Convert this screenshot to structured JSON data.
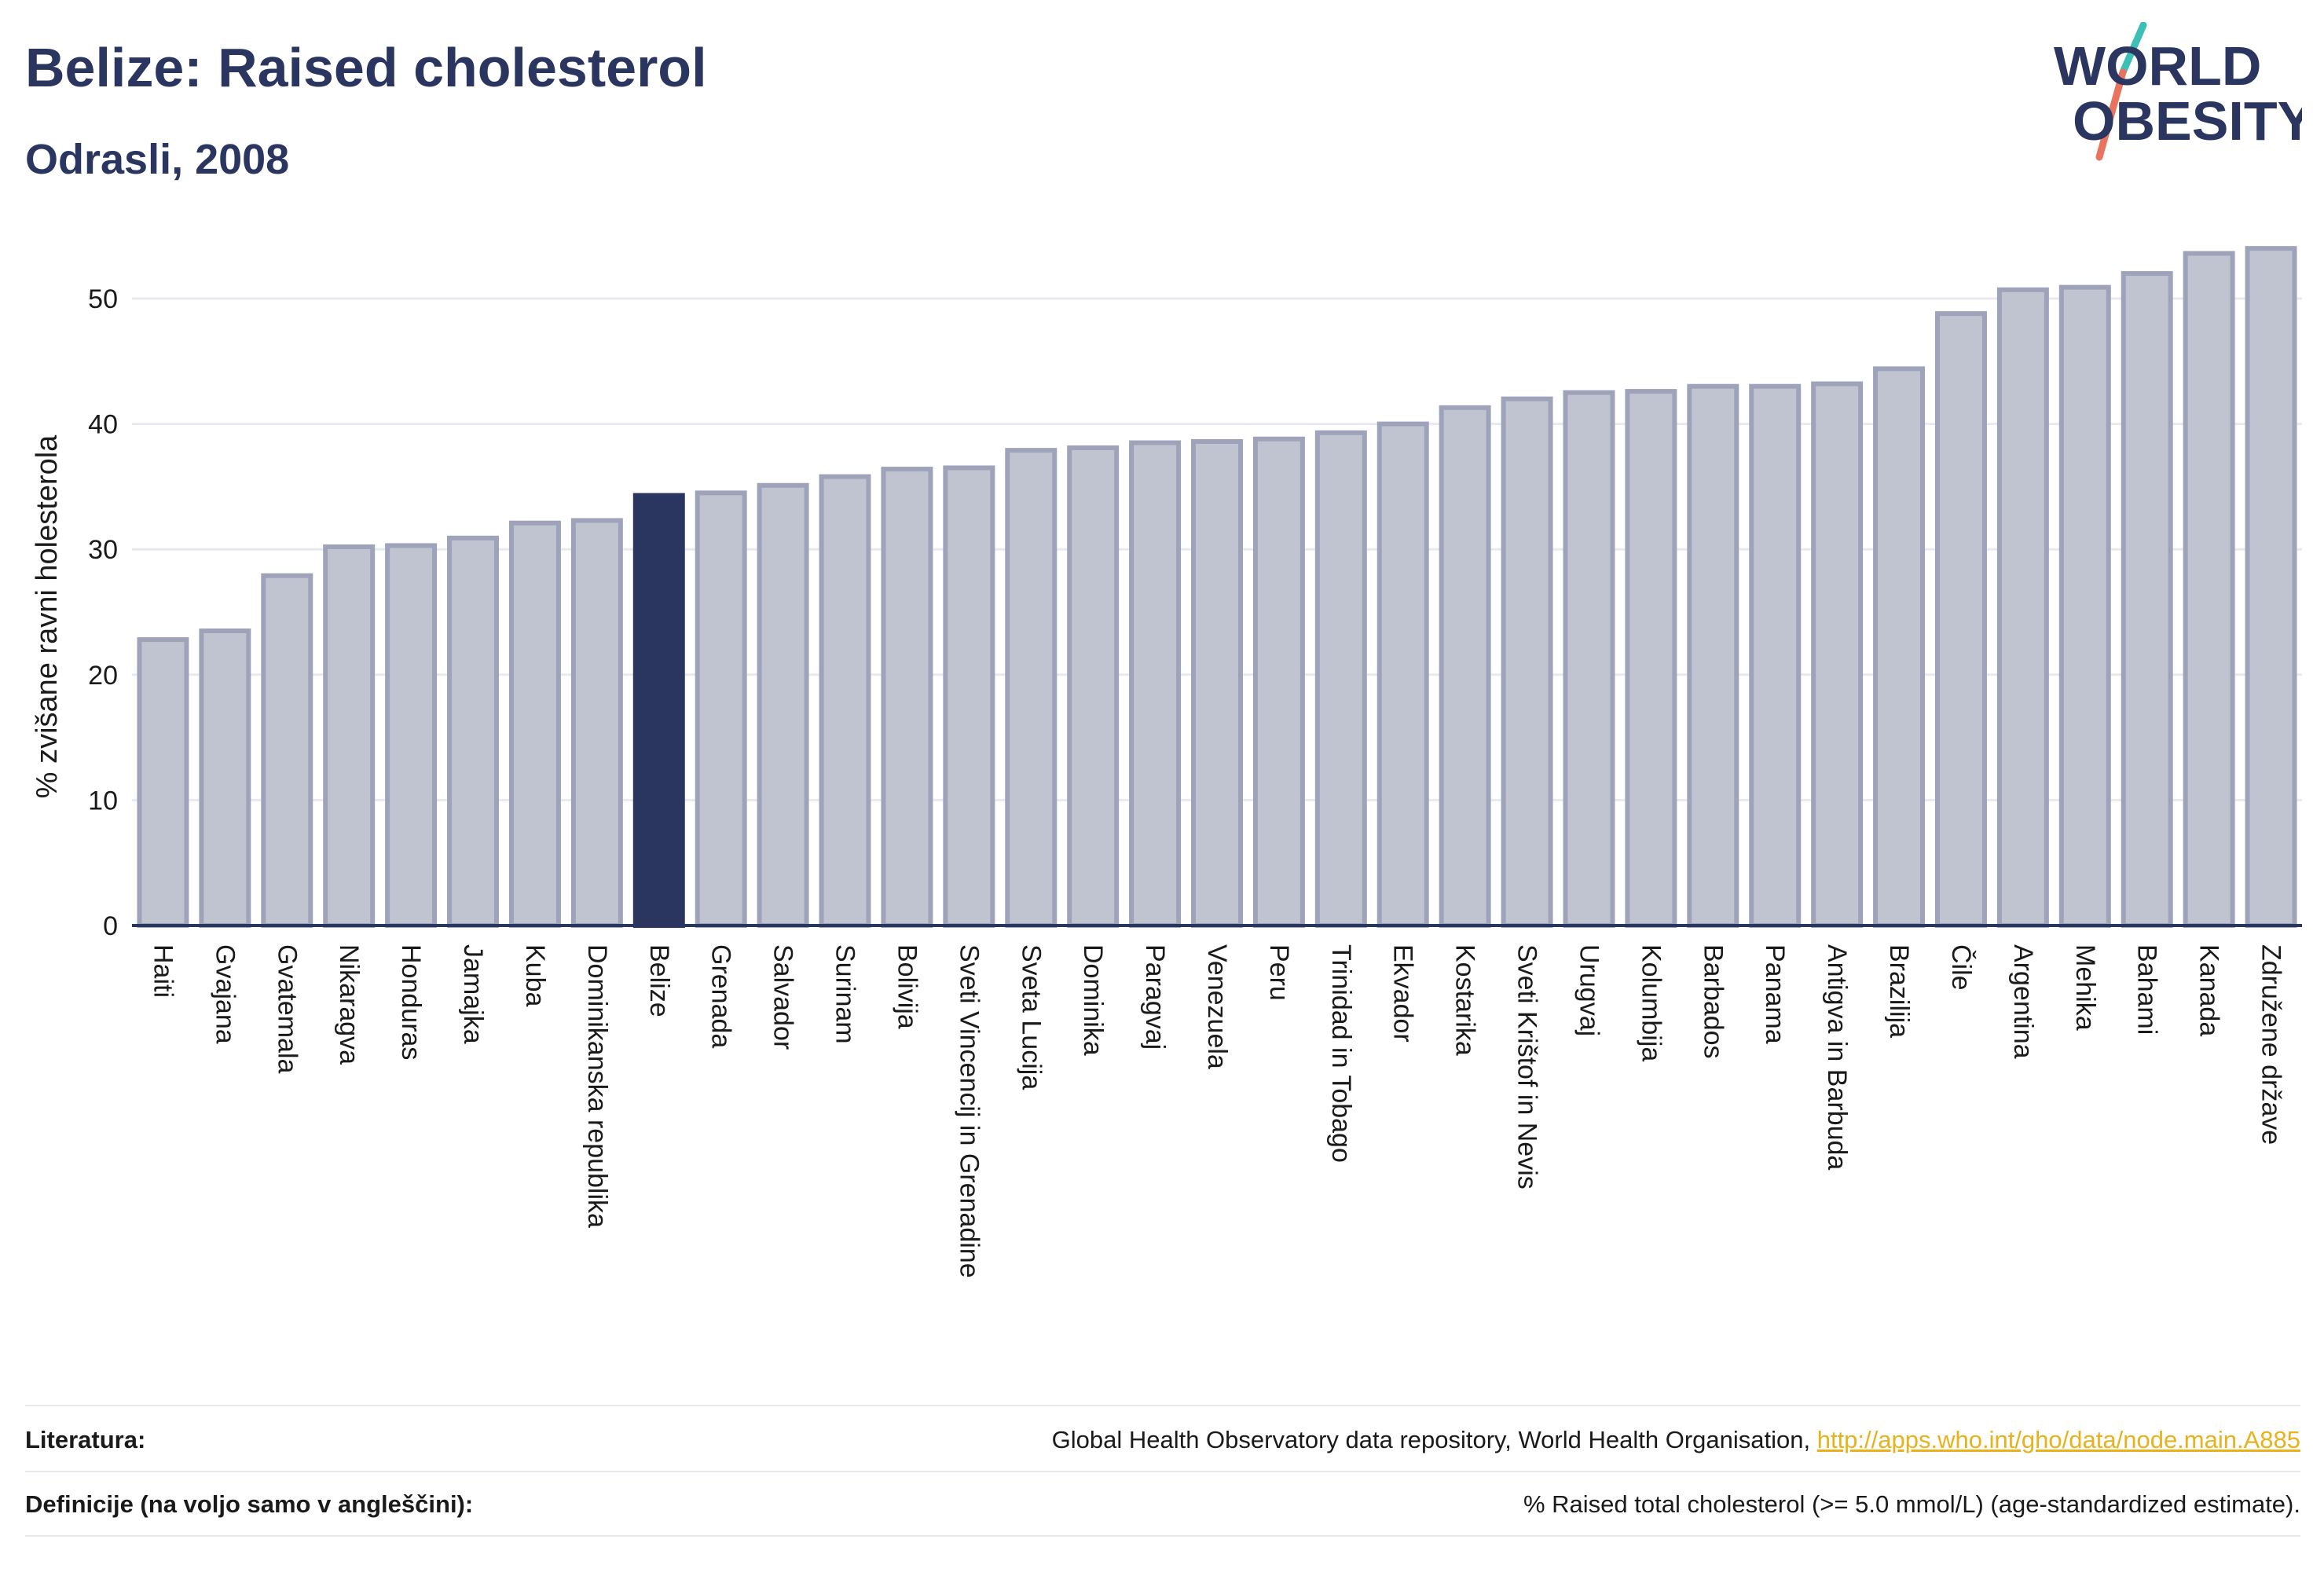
{
  "header": {
    "title": "Belize: Raised cholesterol",
    "subtitle": "Odrasli, 2008",
    "logo_line1": "WORLD",
    "logo_line2": "OBESITY"
  },
  "chart_data": {
    "type": "bar",
    "ylabel": "% zvišane ravni holesterola",
    "ylim": [
      0,
      55
    ],
    "yticks": [
      0,
      10,
      20,
      30,
      40,
      50
    ],
    "grid": true,
    "highlight": "Belize",
    "colors": {
      "bar": "#c0c4d1",
      "bar_border": "#9ea3b9",
      "highlight": "#2b3660",
      "grid": "#e8eaef",
      "axis": "#2b3660"
    },
    "categories": [
      "Haiti",
      "Gvajana",
      "Gvatemala",
      "Nikaragva",
      "Honduras",
      "Jamajka",
      "Kuba",
      "Dominikanska republika",
      "Belize",
      "Grenada",
      "Salvador",
      "Surinam",
      "Bolivija",
      "Sveti Vincencij in Grenadine",
      "Sveta Lucija",
      "Dominika",
      "Paragvaj",
      "Venezuela",
      "Peru",
      "Trinidad in Tobago",
      "Ekvador",
      "Kostarika",
      "Sveti Krištof in Nevis",
      "Urugvaj",
      "Kolumbija",
      "Barbados",
      "Panama",
      "Antigva in Barbuda",
      "Brazilija",
      "Čile",
      "Argentina",
      "Mehika",
      "Bahami",
      "Kanada",
      "Združene države"
    ],
    "values": [
      22.8,
      23.5,
      27.9,
      30.2,
      30.3,
      30.9,
      32.1,
      32.3,
      34.3,
      34.5,
      35.1,
      35.8,
      36.4,
      36.5,
      37.9,
      38.1,
      38.5,
      38.6,
      38.8,
      39.3,
      40.0,
      41.3,
      42.0,
      42.5,
      42.6,
      43.0,
      43.0,
      43.2,
      44.4,
      48.8,
      50.7,
      50.9,
      52.0,
      53.6,
      54.0
    ]
  },
  "footer": {
    "references_label": "Literatura:",
    "references_text": "Global Health Observatory data repository, World Health Organisation,",
    "references_link": "http://apps.who.int/gho/data/node.main.A885",
    "definitions_label": "Definicije (na voljo samo v angleščini):",
    "definitions_text": "% Raised total cholesterol (>= 5.0 mmol/L) (age-standardized estimate)."
  }
}
